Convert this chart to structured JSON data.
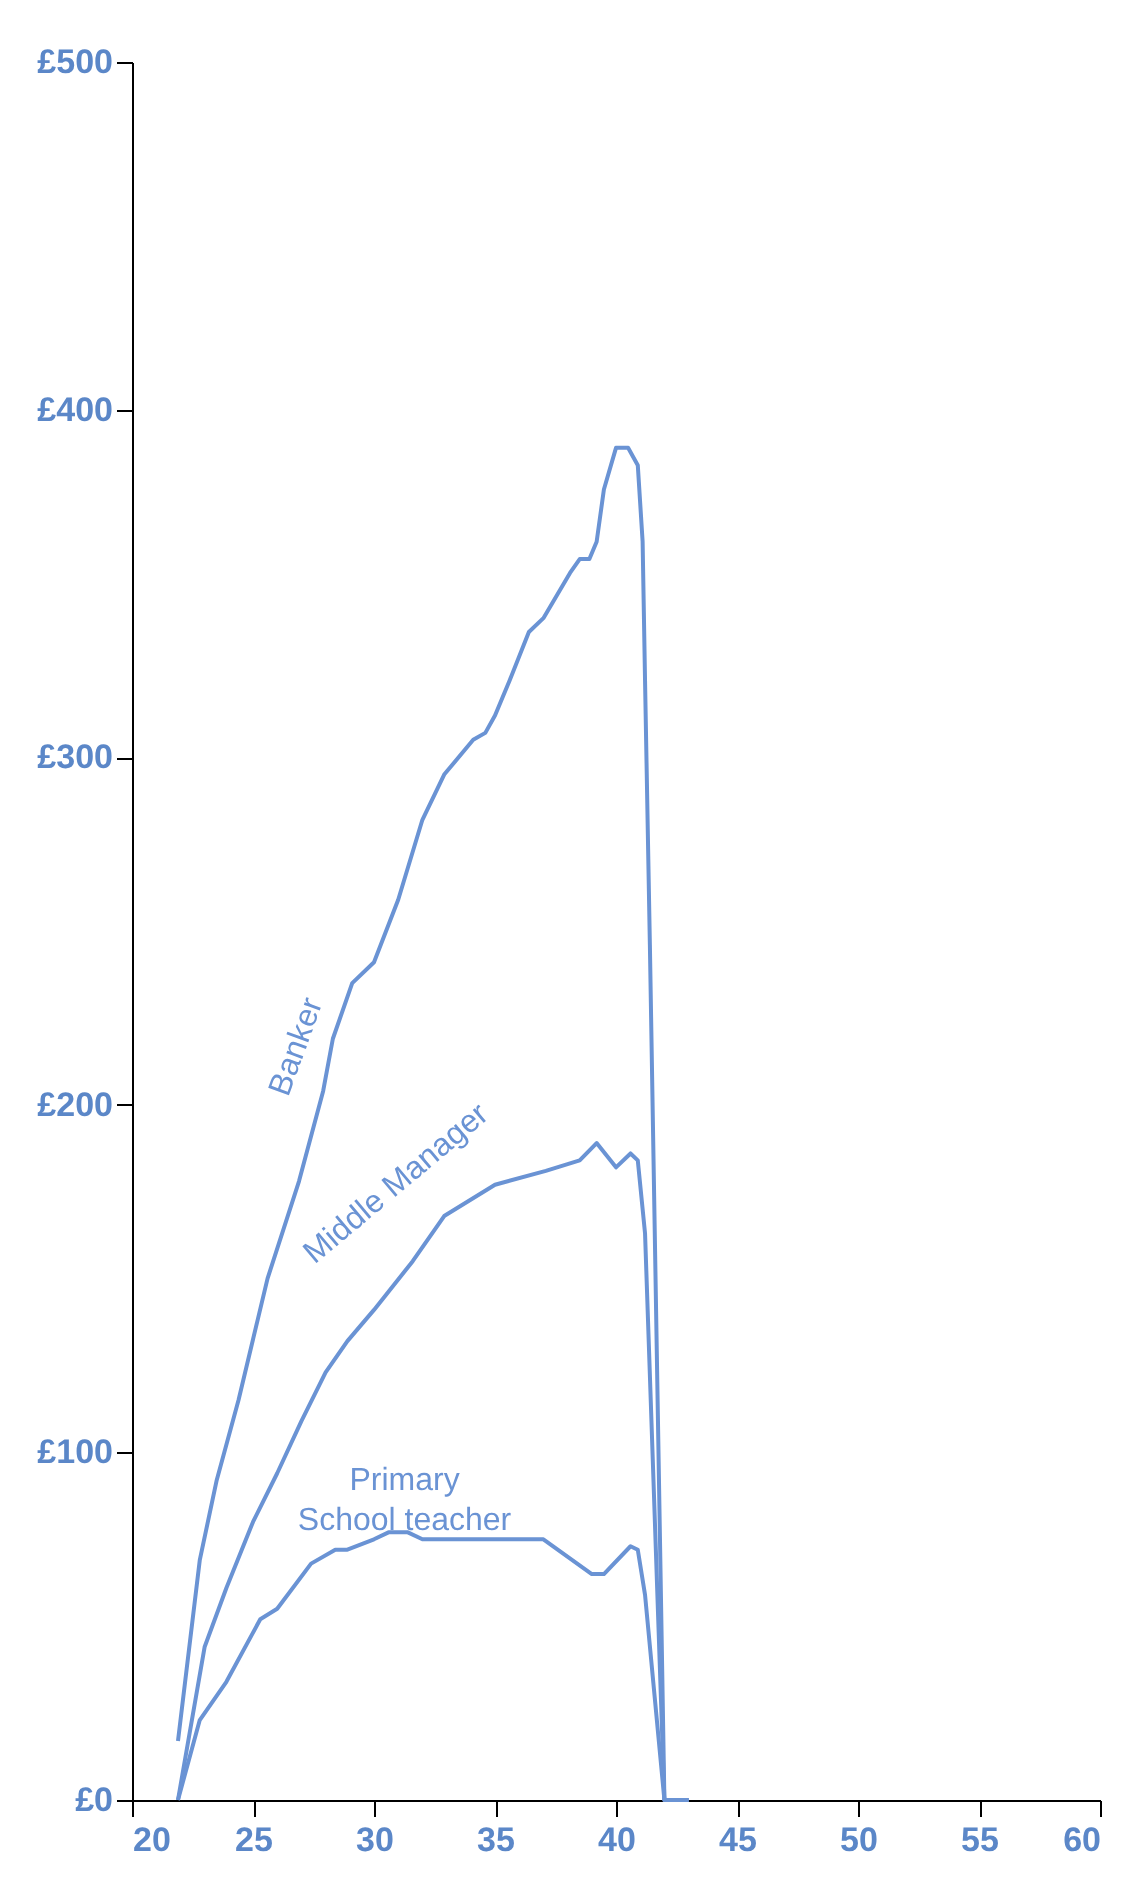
{
  "chart_data": {
    "type": "line",
    "xlim": [
      20,
      60
    ],
    "xticks": [
      20,
      25,
      30,
      35,
      40,
      45,
      50,
      55,
      60
    ],
    "ylim": [
      0,
      500
    ],
    "yticks": [
      {
        "value": 0,
        "label": "£0"
      },
      {
        "value": 100,
        "label": "£100"
      },
      {
        "value": 200,
        "label": "£200"
      },
      {
        "value": 300,
        "label": "£300"
      },
      {
        "value": 400,
        "label": "£400"
      },
      {
        "value": 500,
        "label": "£500"
      }
    ],
    "series": [
      {
        "name": "Banker",
        "color": "#6a93d4",
        "x": [
          21.9,
          22.8,
          23.5,
          24.4,
          25.6,
          26.9,
          27.9,
          28.3,
          29.1,
          30.0,
          31.0,
          32.0,
          32.9,
          34.1,
          34.6,
          35.0,
          35.6,
          36.4,
          37.0,
          38.1,
          38.5,
          38.9,
          39.2,
          39.5,
          40.0,
          40.5,
          40.9,
          41.1,
          41.2,
          41.4,
          42.0,
          43.0
        ],
        "values": [
          17,
          69,
          92,
          115,
          150,
          178,
          204,
          219,
          235,
          241,
          259,
          282,
          295,
          305,
          307,
          312,
          322,
          336,
          340,
          353,
          357,
          357,
          362,
          377,
          389,
          389,
          384,
          362,
          322,
          246,
          0,
          0
        ]
      },
      {
        "name": "Middle Manager",
        "color": "#6a93d4",
        "x": [
          21.9,
          23.0,
          23.9,
          25.0,
          26.0,
          27.0,
          28.0,
          28.9,
          30.0,
          31.6,
          32.9,
          35.0,
          37.1,
          38.5,
          39.2,
          40.0,
          40.6,
          40.9,
          41.2,
          42.0,
          43.0
        ],
        "values": [
          0,
          44,
          61,
          80,
          94,
          109,
          123,
          132,
          141,
          155,
          168,
          177,
          181,
          184,
          189,
          182,
          186,
          184,
          163,
          0,
          0
        ]
      },
      {
        "name": "Primary\nSchool teacher",
        "color": "#6a93d4",
        "x": [
          21.9,
          22.8,
          23.9,
          25.3,
          26.0,
          27.4,
          28.4,
          28.9,
          30.0,
          30.6,
          31.4,
          32.0,
          37.0,
          39.0,
          39.5,
          40.6,
          40.9,
          41.2,
          42.0,
          43.0
        ],
        "values": [
          0,
          23,
          34,
          52,
          55,
          68,
          72,
          72,
          75,
          77,
          77,
          75,
          75,
          65,
          65,
          73,
          72,
          59,
          0,
          0
        ]
      }
    ]
  }
}
